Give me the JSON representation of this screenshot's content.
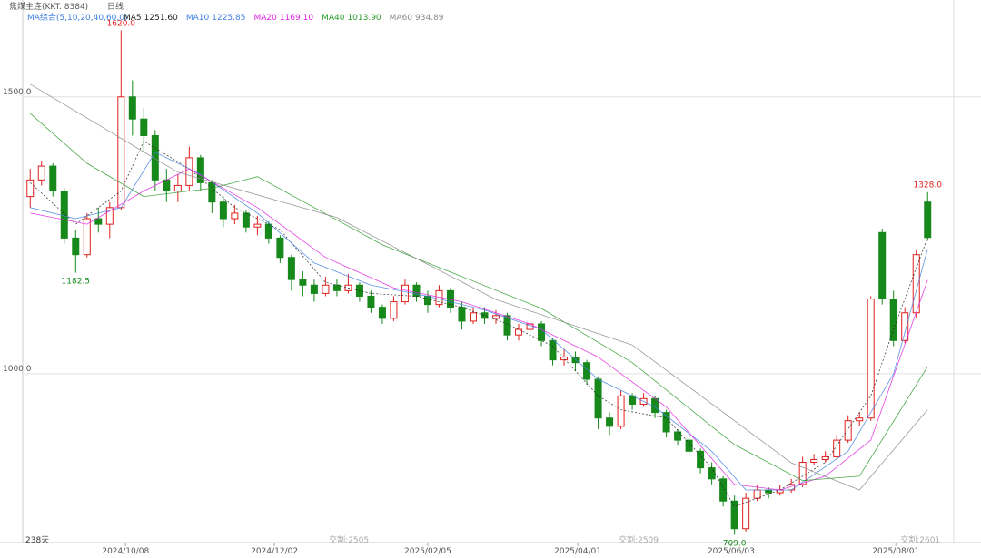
{
  "chart_data": {
    "type": "candlestick",
    "title": "焦煤主连(KKT. 8384)",
    "period": "日线",
    "indicator": "MA综合(5,10,20,40,60,0)",
    "up_color": "#e0201e",
    "down_color": "#16891a",
    "xlim": [
      -0.5,
      81.3
    ],
    "ylim": [
      695,
      1675
    ],
    "yticks": [
      {
        "value": 1000,
        "label": "1000.0"
      },
      {
        "value": 1500,
        "label": "1500.0"
      }
    ],
    "xticks": [
      {
        "value": 8.4,
        "label": "2024/10/08"
      },
      {
        "value": 21.5,
        "label": "2024/12/02"
      },
      {
        "value": 35,
        "label": "2025/02/05"
      },
      {
        "value": 48.2,
        "label": "2025/04/01"
      },
      {
        "value": 61.7,
        "label": "2025/06/03"
      },
      {
        "value": 76.2,
        "label": "2025/08/01"
      }
    ],
    "corner_label": "238天",
    "markers": [
      {
        "x": 26.3,
        "label": "交割:2505"
      },
      {
        "x": 51.8,
        "label": "交割:2509"
      },
      {
        "x": 76.6,
        "label": "交割:2601"
      }
    ],
    "annotations": [
      {
        "text": "1620.0",
        "x": 8,
        "value": 1620,
        "color": "#e0201e",
        "side": "above"
      },
      {
        "text": "1182.5",
        "x": 4,
        "value": 1182.5,
        "color": "#16891a",
        "side": "below"
      },
      {
        "text": "709.0",
        "x": 62,
        "value": 709,
        "color": "#16891a",
        "side": "below"
      },
      {
        "text": "1328.0",
        "x": 79,
        "value": 1328,
        "color": "#e0201e",
        "side": "above"
      }
    ],
    "candles": [
      [
        1320,
        1370,
        1300,
        1350
      ],
      [
        1350,
        1385,
        1340,
        1375
      ],
      [
        1375,
        1380,
        1320,
        1330
      ],
      [
        1330,
        1335,
        1235,
        1245
      ],
      [
        1245,
        1260,
        1182.5,
        1215
      ],
      [
        1215,
        1290,
        1210,
        1280
      ],
      [
        1280,
        1300,
        1255,
        1270
      ],
      [
        1270,
        1310,
        1245,
        1300
      ],
      [
        1300,
        1620,
        1295,
        1500
      ],
      [
        1500,
        1530,
        1430,
        1460
      ],
      [
        1460,
        1480,
        1400,
        1430
      ],
      [
        1430,
        1440,
        1330,
        1350
      ],
      [
        1350,
        1370,
        1310,
        1330
      ],
      [
        1330,
        1360,
        1310,
        1340
      ],
      [
        1340,
        1410,
        1330,
        1390
      ],
      [
        1390,
        1395,
        1330,
        1345
      ],
      [
        1345,
        1350,
        1290,
        1310
      ],
      [
        1310,
        1320,
        1265,
        1280
      ],
      [
        1280,
        1305,
        1270,
        1290
      ],
      [
        1290,
        1295,
        1255,
        1265
      ],
      [
        1265,
        1285,
        1250,
        1270
      ],
      [
        1270,
        1275,
        1235,
        1245
      ],
      [
        1245,
        1250,
        1200,
        1210
      ],
      [
        1210,
        1215,
        1150,
        1170
      ],
      [
        1170,
        1185,
        1140,
        1160
      ],
      [
        1160,
        1170,
        1130,
        1145
      ],
      [
        1145,
        1175,
        1140,
        1160
      ],
      [
        1160,
        1170,
        1140,
        1150
      ],
      [
        1150,
        1180,
        1145,
        1160
      ],
      [
        1160,
        1165,
        1130,
        1140
      ],
      [
        1140,
        1150,
        1110,
        1120
      ],
      [
        1120,
        1125,
        1090,
        1100
      ],
      [
        1100,
        1140,
        1095,
        1130
      ],
      [
        1130,
        1170,
        1125,
        1160
      ],
      [
        1160,
        1165,
        1130,
        1140
      ],
      [
        1140,
        1150,
        1110,
        1125
      ],
      [
        1125,
        1160,
        1120,
        1150
      ],
      [
        1150,
        1155,
        1110,
        1120
      ],
      [
        1120,
        1130,
        1080,
        1095
      ],
      [
        1095,
        1120,
        1090,
        1110
      ],
      [
        1110,
        1120,
        1090,
        1100
      ],
      [
        1100,
        1115,
        1090,
        1105
      ],
      [
        1105,
        1110,
        1060,
        1070
      ],
      [
        1070,
        1090,
        1060,
        1080
      ],
      [
        1080,
        1100,
        1070,
        1090
      ],
      [
        1090,
        1095,
        1050,
        1060
      ],
      [
        1060,
        1065,
        1015,
        1025
      ],
      [
        1025,
        1045,
        1015,
        1030
      ],
      [
        1030,
        1040,
        1005,
        1020
      ],
      [
        1020,
        1025,
        980,
        990
      ],
      [
        990,
        995,
        900,
        920
      ],
      [
        920,
        930,
        890,
        905
      ],
      [
        905,
        970,
        900,
        960
      ],
      [
        960,
        965,
        935,
        945
      ],
      [
        945,
        965,
        940,
        955
      ],
      [
        955,
        960,
        920,
        930
      ],
      [
        930,
        935,
        885,
        895
      ],
      [
        895,
        900,
        870,
        880
      ],
      [
        880,
        890,
        850,
        860
      ],
      [
        860,
        865,
        820,
        830
      ],
      [
        830,
        840,
        800,
        810
      ],
      [
        810,
        815,
        760,
        770
      ],
      [
        770,
        780,
        709,
        720
      ],
      [
        720,
        785,
        715,
        775
      ],
      [
        775,
        800,
        770,
        790
      ],
      [
        790,
        795,
        775,
        785
      ],
      [
        785,
        800,
        780,
        790
      ],
      [
        790,
        810,
        785,
        800
      ],
      [
        800,
        850,
        795,
        840
      ],
      [
        840,
        855,
        835,
        845
      ],
      [
        845,
        860,
        840,
        850
      ],
      [
        850,
        890,
        845,
        880
      ],
      [
        880,
        925,
        875,
        915
      ],
      [
        915,
        930,
        905,
        920
      ],
      [
        920,
        1140,
        915,
        1135
      ],
      [
        1255,
        1262,
        1125,
        1135
      ],
      [
        1135,
        1150,
        1050,
        1060
      ],
      [
        1060,
        1120,
        1055,
        1110
      ],
      [
        1110,
        1225,
        1100,
        1215
      ],
      [
        1310,
        1328,
        1240,
        1246
      ]
    ],
    "ma": [
      {
        "name": "MA5",
        "last": "1251.60",
        "color": "#222222",
        "dash": "2,2",
        "x": [
          0,
          4,
          8,
          10,
          14,
          18,
          22,
          26,
          30,
          34,
          38,
          42,
          46,
          50,
          52,
          56,
          60,
          62,
          66,
          70,
          74,
          76,
          79
        ],
        "values": [
          1345,
          1270,
          1330,
          1420,
          1370,
          1300,
          1260,
          1165,
          1145,
          1140,
          1120,
          1090,
          1050,
          960,
          935,
          920,
          830,
          760,
          790,
          840,
          960,
          1080,
          1246
        ]
      },
      {
        "name": "MA10",
        "last": "1225.85",
        "color": "#3f7fe0",
        "dash": "",
        "x": [
          0,
          4,
          8,
          11,
          15,
          20,
          25,
          30,
          35,
          40,
          45,
          50,
          55,
          60,
          63,
          67,
          72,
          76,
          79
        ],
        "values": [
          1300,
          1280,
          1300,
          1400,
          1360,
          1290,
          1200,
          1160,
          1140,
          1115,
          1080,
          990,
          940,
          860,
          790,
          790,
          860,
          1000,
          1225
        ]
      },
      {
        "name": "MA20",
        "last": "1169.10",
        "color": "#e020e0",
        "dash": "",
        "x": [
          0,
          5,
          10,
          14,
          20,
          26,
          32,
          38,
          44,
          50,
          56,
          62,
          66,
          70,
          74,
          79
        ],
        "values": [
          1290,
          1270,
          1330,
          1370,
          1300,
          1210,
          1155,
          1130,
          1090,
          1030,
          940,
          800,
          790,
          815,
          880,
          1169
        ]
      },
      {
        "name": "MA40",
        "last": "1013.90",
        "color": "#2a9a2a",
        "dash": "",
        "x": [
          0,
          5,
          10,
          16,
          20,
          31,
          45,
          53,
          62,
          68,
          73,
          79
        ],
        "values": [
          1470,
          1380,
          1320,
          1335,
          1356,
          1233,
          1118,
          1020,
          872,
          807,
          815,
          1013
        ]
      },
      {
        "name": "MA60",
        "last": "934.89",
        "color": "#888888",
        "dash": "",
        "x": [
          0,
          13,
          27,
          41,
          53,
          67,
          73,
          79
        ],
        "values": [
          1523,
          1364,
          1282,
          1134,
          1052,
          839,
          790,
          935
        ]
      }
    ]
  }
}
